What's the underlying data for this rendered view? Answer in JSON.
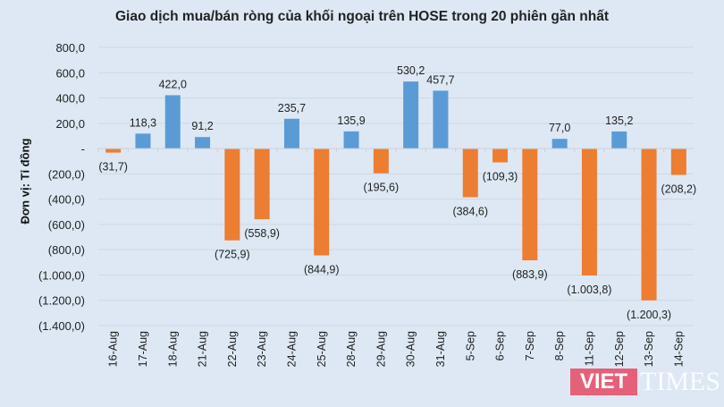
{
  "chart_data": {
    "type": "bar",
    "title": "Giao dịch mua/bán ròng của khối ngoại trên HOSE trong 20 phiên gần nhất",
    "xlabel": "",
    "ylabel": "Đơn vị: Tỉ đồng",
    "ylim": [
      -1400,
      800
    ],
    "yticks": [
      800,
      600,
      400,
      200,
      0,
      -200,
      -400,
      -600,
      -800,
      -1000,
      -1200,
      -1400
    ],
    "ytick_labels": [
      "800,0",
      "600,0",
      "400,0",
      "200,0",
      "-",
      "(200,0)",
      "(400,0)",
      "(600,0)",
      "(800,0)",
      "(1.000,0)",
      "(1.200,0)",
      "(1.400,0)"
    ],
    "grid": true,
    "categories": [
      "16-Aug",
      "17-Aug",
      "18-Aug",
      "21-Aug",
      "22-Aug",
      "23-Aug",
      "24-Aug",
      "25-Aug",
      "28-Aug",
      "29-Aug",
      "30-Aug",
      "31-Aug",
      "5-Sep",
      "6-Sep",
      "7-Sep",
      "8-Sep",
      "11-Sep",
      "12-Sep",
      "13-Sep",
      "14-Sep"
    ],
    "values": [
      -31.7,
      118.3,
      422.0,
      91.2,
      -725.9,
      -558.9,
      235.7,
      -844.9,
      135.9,
      -195.6,
      530.2,
      457.7,
      -384.6,
      -109.3,
      -883.9,
      77.0,
      -1003.8,
      135.2,
      -1200.3,
      -208.2
    ],
    "data_labels": [
      "(31,7)",
      "118,3",
      "422,0",
      "91,2",
      "(725,9)",
      "(558,9)",
      "235,7",
      "(844,9)",
      "135,9",
      "(195,6)",
      "530,2",
      "457,7",
      "(384,6)",
      "(109,3)",
      "(883,9)",
      "77,0",
      "(1.003,8)",
      "135,2",
      "(1.200,3)",
      "(208,2)"
    ],
    "colors": {
      "positive": "#5b9bd5",
      "negative": "#ed7d31"
    }
  },
  "watermark": {
    "brand": "VIETTIMES",
    "brand_left": "VIET",
    "brand_right": "TIMES"
  }
}
